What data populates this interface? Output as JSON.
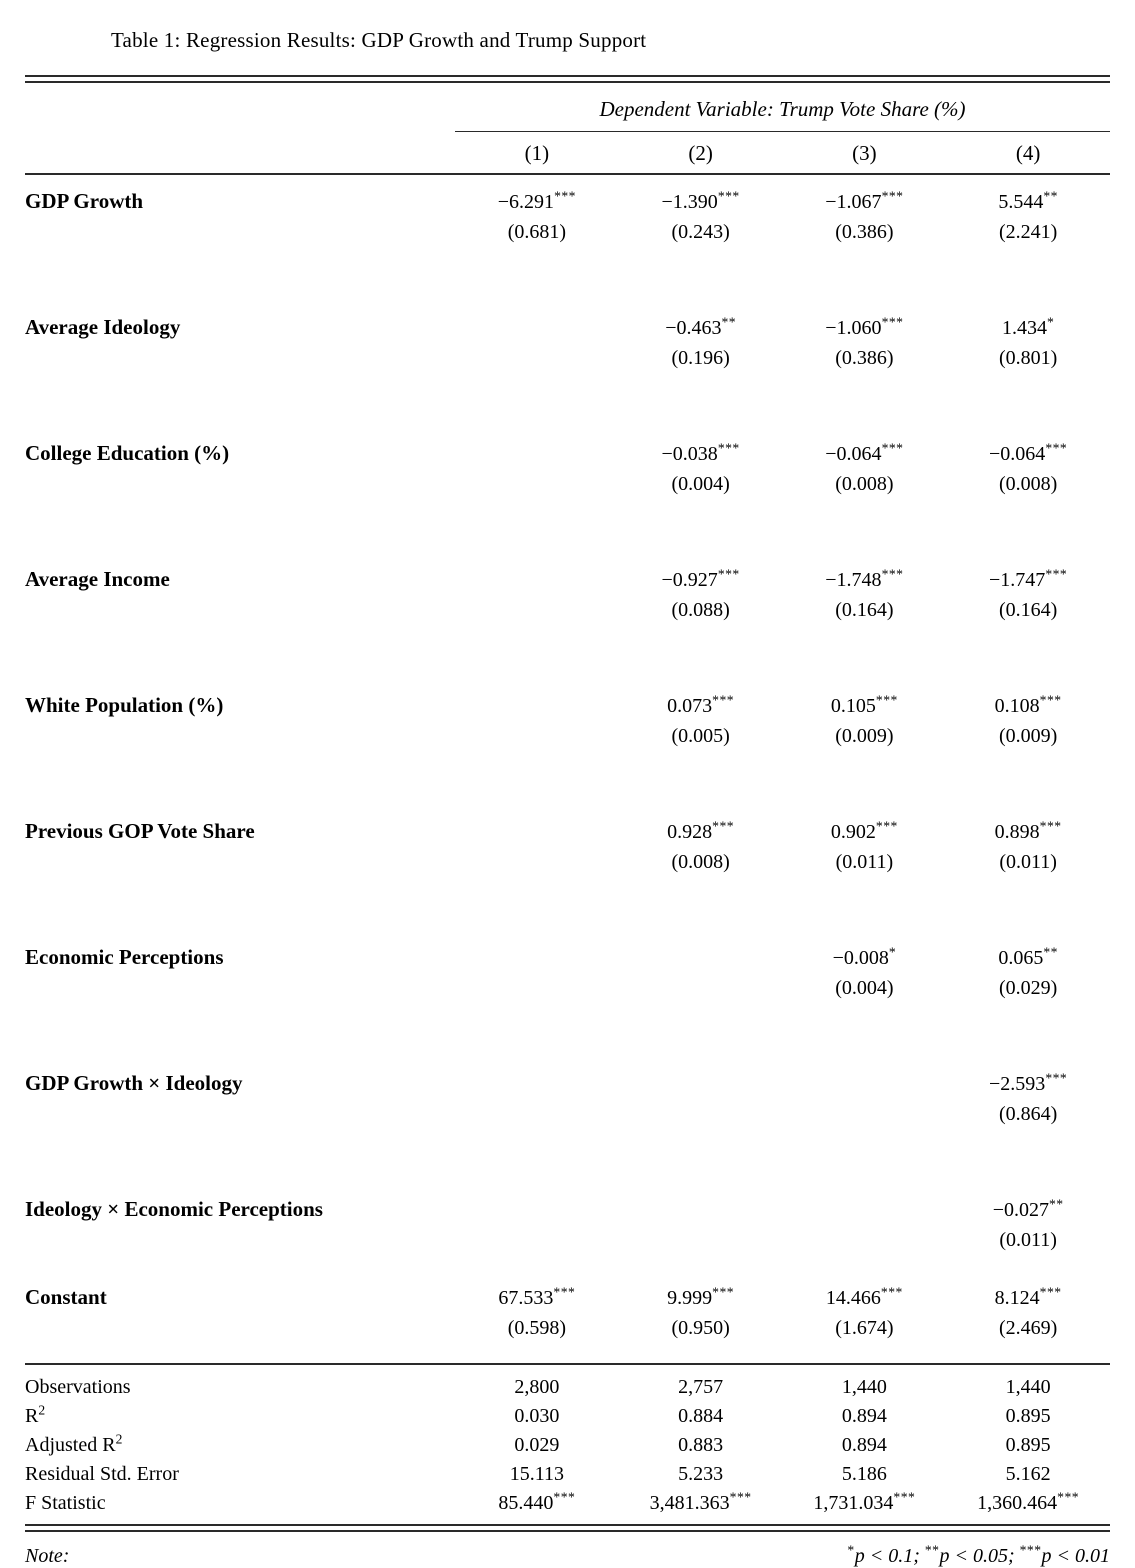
{
  "title": "Table 1: Regression Results: GDP Growth and Trump Support",
  "header": {
    "dependent_variable_label": "Dependent Variable: Trump Vote Share (%)",
    "columns": [
      "(1)",
      "(2)",
      "(3)",
      "(4)"
    ]
  },
  "coefficient_rows": [
    {
      "label": "GDP Growth",
      "cells": [
        {
          "coef": "−6.291",
          "stars": "***",
          "se": "(0.681)"
        },
        {
          "coef": "−1.390",
          "stars": "***",
          "se": "(0.243)"
        },
        {
          "coef": "−1.067",
          "stars": "***",
          "se": "(0.386)"
        },
        {
          "coef": "5.544",
          "stars": "**",
          "se": "(2.241)"
        }
      ]
    },
    {
      "label": "Average Ideology",
      "cells": [
        {
          "coef": "",
          "stars": "",
          "se": ""
        },
        {
          "coef": "−0.463",
          "stars": "**",
          "se": "(0.196)"
        },
        {
          "coef": "−1.060",
          "stars": "***",
          "se": "(0.386)"
        },
        {
          "coef": "1.434",
          "stars": "*",
          "se": "(0.801)"
        }
      ]
    },
    {
      "label": "College Education (%)",
      "cells": [
        {
          "coef": "",
          "stars": "",
          "se": ""
        },
        {
          "coef": "−0.038",
          "stars": "***",
          "se": "(0.004)"
        },
        {
          "coef": "−0.064",
          "stars": "***",
          "se": "(0.008)"
        },
        {
          "coef": "−0.064",
          "stars": "***",
          "se": "(0.008)"
        }
      ]
    },
    {
      "label": "Average Income",
      "cells": [
        {
          "coef": "",
          "stars": "",
          "se": ""
        },
        {
          "coef": "−0.927",
          "stars": "***",
          "se": "(0.088)"
        },
        {
          "coef": "−1.748",
          "stars": "***",
          "se": "(0.164)"
        },
        {
          "coef": "−1.747",
          "stars": "***",
          "se": "(0.164)"
        }
      ]
    },
    {
      "label": "White Population (%)",
      "cells": [
        {
          "coef": "",
          "stars": "",
          "se": ""
        },
        {
          "coef": "0.073",
          "stars": "***",
          "se": "(0.005)"
        },
        {
          "coef": "0.105",
          "stars": "***",
          "se": "(0.009)"
        },
        {
          "coef": "0.108",
          "stars": "***",
          "se": "(0.009)"
        }
      ]
    },
    {
      "label": "Previous GOP Vote Share",
      "cells": [
        {
          "coef": "",
          "stars": "",
          "se": ""
        },
        {
          "coef": "0.928",
          "stars": "***",
          "se": "(0.008)"
        },
        {
          "coef": "0.902",
          "stars": "***",
          "se": "(0.011)"
        },
        {
          "coef": "0.898",
          "stars": "***",
          "se": "(0.011)"
        }
      ]
    },
    {
      "label": "Economic Perceptions",
      "cells": [
        {
          "coef": "",
          "stars": "",
          "se": ""
        },
        {
          "coef": "",
          "stars": "",
          "se": ""
        },
        {
          "coef": "−0.008",
          "stars": "*",
          "se": "(0.004)"
        },
        {
          "coef": "0.065",
          "stars": "**",
          "se": "(0.029)"
        }
      ]
    },
    {
      "label": "GDP Growth × Ideology",
      "cells": [
        {
          "coef": "",
          "stars": "",
          "se": ""
        },
        {
          "coef": "",
          "stars": "",
          "se": ""
        },
        {
          "coef": "",
          "stars": "",
          "se": ""
        },
        {
          "coef": "−2.593",
          "stars": "***",
          "se": "(0.864)"
        }
      ]
    },
    {
      "label": "Ideology × Economic Perceptions",
      "cells": [
        {
          "coef": "",
          "stars": "",
          "se": ""
        },
        {
          "coef": "",
          "stars": "",
          "se": ""
        },
        {
          "coef": "",
          "stars": "",
          "se": ""
        },
        {
          "coef": "−0.027",
          "stars": "**",
          "se": "(0.011)"
        }
      ]
    },
    {
      "label": "Constant",
      "cells": [
        {
          "coef": "67.533",
          "stars": "***",
          "se": "(0.598)"
        },
        {
          "coef": "9.999",
          "stars": "***",
          "se": "(0.950)"
        },
        {
          "coef": "14.466",
          "stars": "***",
          "se": "(1.674)"
        },
        {
          "coef": "8.124",
          "stars": "***",
          "se": "(2.469)"
        }
      ]
    }
  ],
  "stats_rows": [
    {
      "label": "Observations",
      "label_sup": "",
      "values": [
        {
          "value": "2,800",
          "stars": ""
        },
        {
          "value": "2,757",
          "stars": ""
        },
        {
          "value": "1,440",
          "stars": ""
        },
        {
          "value": "1,440",
          "stars": ""
        }
      ]
    },
    {
      "label": "R",
      "label_sup": "2",
      "values": [
        {
          "value": "0.030",
          "stars": ""
        },
        {
          "value": "0.884",
          "stars": ""
        },
        {
          "value": "0.894",
          "stars": ""
        },
        {
          "value": "0.895",
          "stars": ""
        }
      ]
    },
    {
      "label": "Adjusted R",
      "label_sup": "2",
      "values": [
        {
          "value": "0.029",
          "stars": ""
        },
        {
          "value": "0.883",
          "stars": ""
        },
        {
          "value": "0.894",
          "stars": ""
        },
        {
          "value": "0.895",
          "stars": ""
        }
      ]
    },
    {
      "label": "Residual Std. Error",
      "label_sup": "",
      "values": [
        {
          "value": "15.113",
          "stars": ""
        },
        {
          "value": "5.233",
          "stars": ""
        },
        {
          "value": "5.186",
          "stars": ""
        },
        {
          "value": "5.162",
          "stars": ""
        }
      ]
    },
    {
      "label": "F Statistic",
      "label_sup": "",
      "values": [
        {
          "value": "85.440",
          "stars": "***"
        },
        {
          "value": "3,481.363",
          "stars": "***"
        },
        {
          "value": "1,731.034",
          "stars": "***"
        },
        {
          "value": "1,360.464",
          "stars": "***"
        }
      ]
    }
  ],
  "note": {
    "label": "Note:",
    "significance": [
      {
        "stars": "*",
        "text": "p < 0.1; "
      },
      {
        "stars": "**",
        "text": "p < 0.05; "
      },
      {
        "stars": "***",
        "text": "p < 0.01"
      }
    ]
  }
}
